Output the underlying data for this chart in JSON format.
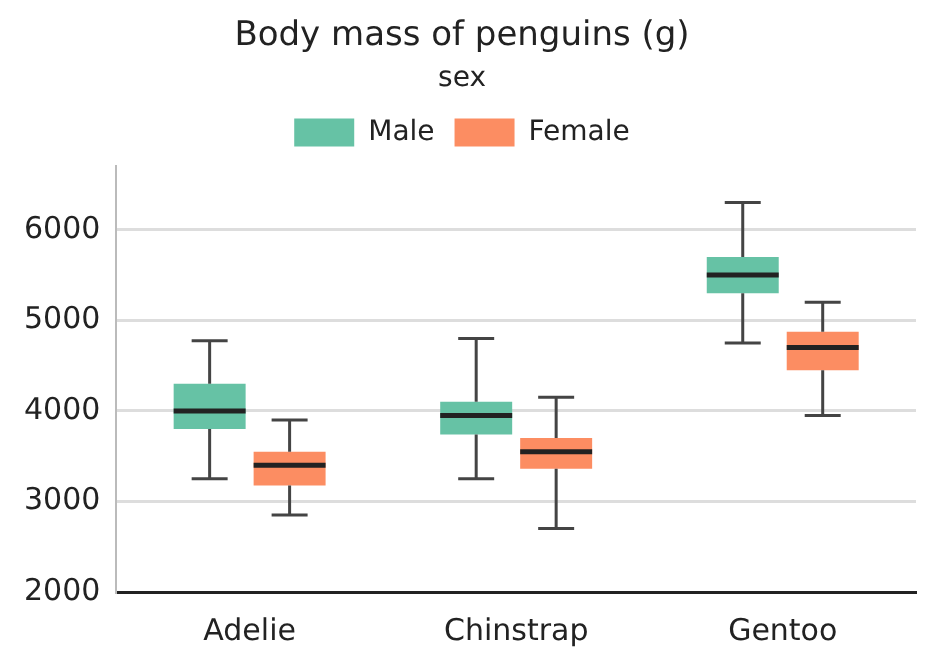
{
  "chart_data": {
    "type": "box",
    "title": "Body mass of penguins (g)",
    "legend_title": "sex",
    "categories": [
      "Adelie",
      "Chinstrap",
      "Gentoo"
    ],
    "series": [
      {
        "name": "Male",
        "color": "#66c2a5",
        "boxes": [
          {
            "low": 3250,
            "q1": 3800,
            "median": 4000,
            "q3": 4300,
            "high": 4775
          },
          {
            "low": 3250,
            "q1": 3740,
            "median": 3950,
            "q3": 4100,
            "high": 4800
          },
          {
            "low": 4750,
            "q1": 5300,
            "median": 5500,
            "q3": 5700,
            "high": 6300
          }
        ]
      },
      {
        "name": "Female",
        "color": "#fc8d62",
        "boxes": [
          {
            "low": 2850,
            "q1": 3175,
            "median": 3400,
            "q3": 3550,
            "high": 3900
          },
          {
            "low": 2700,
            "q1": 3360,
            "median": 3550,
            "q3": 3700,
            "high": 4150
          },
          {
            "low": 3950,
            "q1": 4450,
            "median": 4700,
            "q3": 4875,
            "high": 5200
          }
        ]
      }
    ],
    "ylim": [
      2000,
      6700
    ],
    "yticks": [
      2000,
      3000,
      4000,
      5000,
      6000
    ],
    "grid": "y",
    "legend": "top"
  }
}
